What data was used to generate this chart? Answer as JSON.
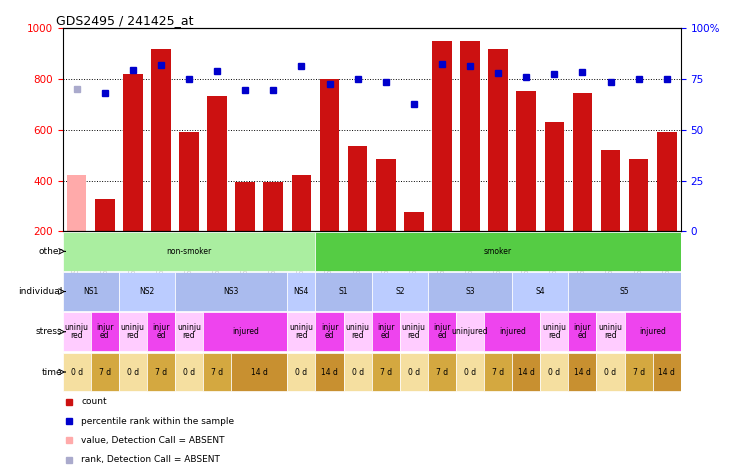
{
  "title": "GDS2495 / 241425_at",
  "samples": [
    "GSM122528",
    "GSM122531",
    "GSM122539",
    "GSM122540",
    "GSM122541",
    "GSM122542",
    "GSM122543",
    "GSM122544",
    "GSM122546",
    "GSM122527",
    "GSM122529",
    "GSM122530",
    "GSM122532",
    "GSM122533",
    "GSM122535",
    "GSM122536",
    "GSM122538",
    "GSM122534",
    "GSM122537",
    "GSM122545",
    "GSM122547",
    "GSM122548"
  ],
  "count_values": [
    420,
    328,
    820,
    920,
    590,
    735,
    395,
    395,
    420,
    800,
    535,
    485,
    275,
    950,
    950,
    920,
    755,
    630,
    745,
    520,
    485,
    590
  ],
  "count_absent": [
    true,
    false,
    false,
    false,
    false,
    false,
    false,
    false,
    false,
    false,
    false,
    false,
    false,
    false,
    false,
    false,
    false,
    false,
    false,
    false,
    false,
    false
  ],
  "rank_values": [
    760,
    745,
    835,
    855,
    800,
    832,
    758,
    758,
    850,
    780,
    800,
    790,
    700,
    860,
    850,
    825,
    810,
    820,
    830,
    790,
    800,
    800
  ],
  "rank_absent": [
    true,
    false,
    false,
    false,
    false,
    false,
    false,
    false,
    false,
    false,
    false,
    false,
    false,
    false,
    false,
    false,
    false,
    false,
    false,
    false,
    false,
    false
  ],
  "ylim_left": [
    200,
    1000
  ],
  "ylim_right": [
    0,
    100
  ],
  "yticks_left": [
    200,
    400,
    600,
    800,
    1000
  ],
  "yticks_right": [
    0,
    25,
    50,
    75,
    100
  ],
  "ytick_right_labels": [
    "0",
    "25",
    "50",
    "75",
    "100%"
  ],
  "bar_color": "#cc1111",
  "bar_absent_color": "#ffaaaa",
  "rank_color": "#0000cc",
  "rank_absent_color": "#aaaacc",
  "other_row": {
    "label": "other",
    "segments": [
      {
        "text": "non-smoker",
        "start": 0,
        "end": 8,
        "color": "#aaeea0"
      },
      {
        "text": "smoker",
        "start": 9,
        "end": 21,
        "color": "#55cc44"
      }
    ]
  },
  "individual_row": {
    "label": "individual",
    "segments": [
      {
        "text": "NS1",
        "start": 0,
        "end": 1,
        "color": "#aabbee"
      },
      {
        "text": "NS2",
        "start": 2,
        "end": 3,
        "color": "#bbccff"
      },
      {
        "text": "NS3",
        "start": 4,
        "end": 7,
        "color": "#aabbee"
      },
      {
        "text": "NS4",
        "start": 8,
        "end": 8,
        "color": "#bbccff"
      },
      {
        "text": "S1",
        "start": 9,
        "end": 10,
        "color": "#aabbee"
      },
      {
        "text": "S2",
        "start": 11,
        "end": 12,
        "color": "#bbccff"
      },
      {
        "text": "S3",
        "start": 13,
        "end": 15,
        "color": "#aabbee"
      },
      {
        "text": "S4",
        "start": 16,
        "end": 17,
        "color": "#bbccff"
      },
      {
        "text": "S5",
        "start": 18,
        "end": 21,
        "color": "#aabbee"
      }
    ]
  },
  "stress_row": {
    "label": "stress",
    "segments": [
      {
        "text": "uninju\nred",
        "start": 0,
        "end": 0,
        "color": "#ffccff"
      },
      {
        "text": "injur\ned",
        "start": 1,
        "end": 1,
        "color": "#ee44ee"
      },
      {
        "text": "uninju\nred",
        "start": 2,
        "end": 2,
        "color": "#ffccff"
      },
      {
        "text": "injur\ned",
        "start": 3,
        "end": 3,
        "color": "#ee44ee"
      },
      {
        "text": "uninju\nred",
        "start": 4,
        "end": 4,
        "color": "#ffccff"
      },
      {
        "text": "injured",
        "start": 5,
        "end": 7,
        "color": "#ee44ee"
      },
      {
        "text": "uninju\nred",
        "start": 8,
        "end": 8,
        "color": "#ffccff"
      },
      {
        "text": "injur\ned",
        "start": 9,
        "end": 9,
        "color": "#ee44ee"
      },
      {
        "text": "uninju\nred",
        "start": 10,
        "end": 10,
        "color": "#ffccff"
      },
      {
        "text": "injur\ned",
        "start": 11,
        "end": 11,
        "color": "#ee44ee"
      },
      {
        "text": "uninju\nred",
        "start": 12,
        "end": 12,
        "color": "#ffccff"
      },
      {
        "text": "injur\ned",
        "start": 13,
        "end": 13,
        "color": "#ee44ee"
      },
      {
        "text": "uninjured",
        "start": 14,
        "end": 14,
        "color": "#ffccff"
      },
      {
        "text": "injured",
        "start": 15,
        "end": 16,
        "color": "#ee44ee"
      },
      {
        "text": "uninju\nred",
        "start": 17,
        "end": 17,
        "color": "#ffccff"
      },
      {
        "text": "injur\ned",
        "start": 18,
        "end": 18,
        "color": "#ee44ee"
      },
      {
        "text": "uninju\nred",
        "start": 19,
        "end": 19,
        "color": "#ffccff"
      },
      {
        "text": "injured",
        "start": 20,
        "end": 21,
        "color": "#ee44ee"
      }
    ]
  },
  "time_row": {
    "label": "time",
    "segments": [
      {
        "text": "0 d",
        "start": 0,
        "end": 0,
        "color": "#f5dfa0"
      },
      {
        "text": "7 d",
        "start": 1,
        "end": 1,
        "color": "#d4a840"
      },
      {
        "text": "0 d",
        "start": 2,
        "end": 2,
        "color": "#f5dfa0"
      },
      {
        "text": "7 d",
        "start": 3,
        "end": 3,
        "color": "#d4a840"
      },
      {
        "text": "0 d",
        "start": 4,
        "end": 4,
        "color": "#f5dfa0"
      },
      {
        "text": "7 d",
        "start": 5,
        "end": 5,
        "color": "#d4a840"
      },
      {
        "text": "14 d",
        "start": 6,
        "end": 7,
        "color": "#c89030"
      },
      {
        "text": "0 d",
        "start": 8,
        "end": 8,
        "color": "#f5dfa0"
      },
      {
        "text": "14 d",
        "start": 9,
        "end": 9,
        "color": "#c89030"
      },
      {
        "text": "0 d",
        "start": 10,
        "end": 10,
        "color": "#f5dfa0"
      },
      {
        "text": "7 d",
        "start": 11,
        "end": 11,
        "color": "#d4a840"
      },
      {
        "text": "0 d",
        "start": 12,
        "end": 12,
        "color": "#f5dfa0"
      },
      {
        "text": "7 d",
        "start": 13,
        "end": 13,
        "color": "#d4a840"
      },
      {
        "text": "0 d",
        "start": 14,
        "end": 14,
        "color": "#f5dfa0"
      },
      {
        "text": "7 d",
        "start": 15,
        "end": 15,
        "color": "#d4a840"
      },
      {
        "text": "14 d",
        "start": 16,
        "end": 16,
        "color": "#c89030"
      },
      {
        "text": "0 d",
        "start": 17,
        "end": 17,
        "color": "#f5dfa0"
      },
      {
        "text": "14 d",
        "start": 18,
        "end": 18,
        "color": "#c89030"
      },
      {
        "text": "0 d",
        "start": 19,
        "end": 19,
        "color": "#f5dfa0"
      },
      {
        "text": "7 d",
        "start": 20,
        "end": 20,
        "color": "#d4a840"
      },
      {
        "text": "14 d",
        "start": 21,
        "end": 21,
        "color": "#c89030"
      }
    ]
  },
  "legend": [
    {
      "color": "#cc1111",
      "label": "count",
      "marker": "s"
    },
    {
      "color": "#0000cc",
      "label": "percentile rank within the sample",
      "marker": "s"
    },
    {
      "color": "#ffaaaa",
      "label": "value, Detection Call = ABSENT",
      "marker": "s"
    },
    {
      "color": "#aaaacc",
      "label": "rank, Detection Call = ABSENT",
      "marker": "s"
    }
  ],
  "fig_width": 7.36,
  "fig_height": 4.74,
  "dpi": 100
}
